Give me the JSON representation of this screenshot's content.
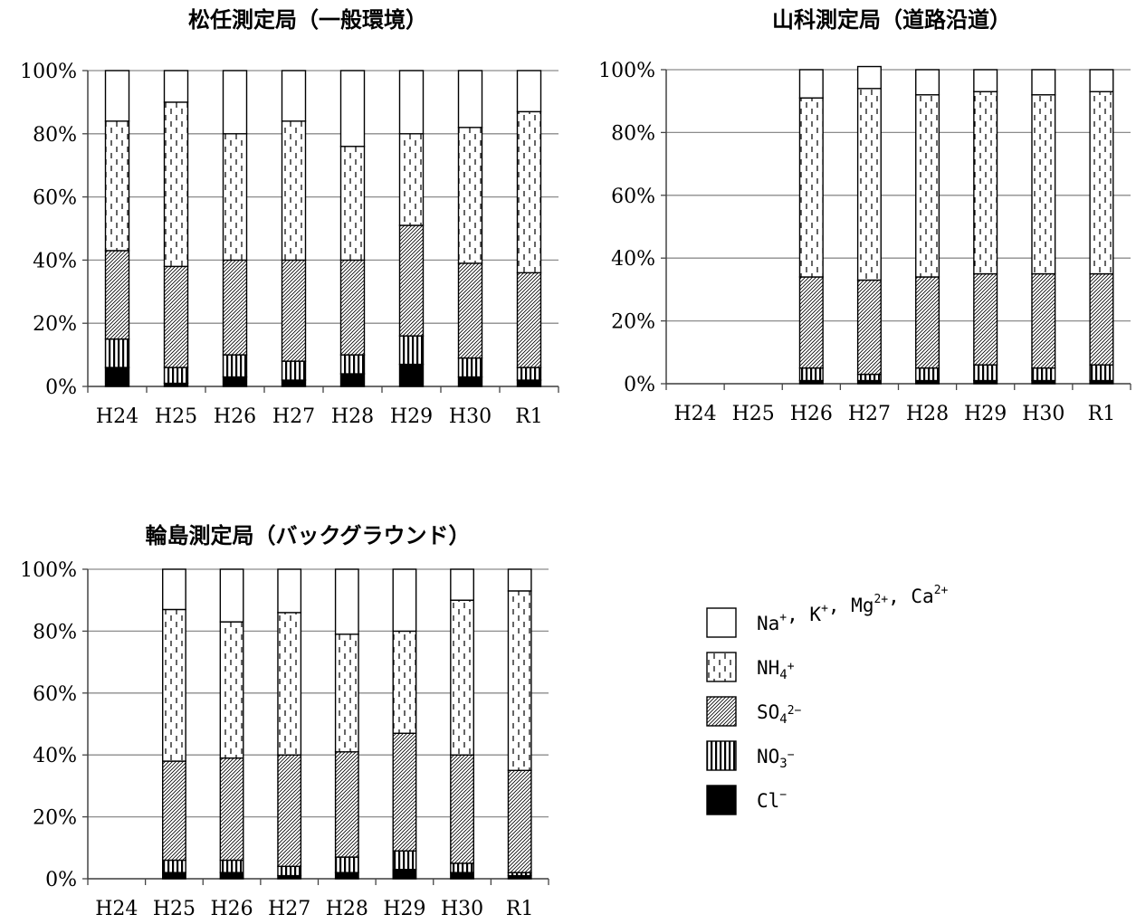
{
  "chart_data": [
    {
      "type": "bar",
      "stacked": true,
      "title": "松任測定局（一般環境）",
      "categories": [
        "H24",
        "H25",
        "H26",
        "H27",
        "H28",
        "H29",
        "H30",
        "R1"
      ],
      "y_ticks": [
        "0%",
        "20%",
        "40%",
        "60%",
        "80%",
        "100%"
      ],
      "ylim": [
        0,
        100
      ],
      "series": [
        {
          "name": "Cl⁻",
          "values": [
            6,
            1,
            3,
            2,
            4,
            7,
            3,
            2
          ]
        },
        {
          "name": "NO₃⁻",
          "values": [
            9,
            5,
            7,
            6,
            6,
            9,
            6,
            4
          ]
        },
        {
          "name": "SO₄²⁻",
          "values": [
            28,
            32,
            30,
            32,
            30,
            35,
            30,
            30
          ]
        },
        {
          "name": "NH₄⁺",
          "values": [
            41,
            52,
            40,
            44,
            36,
            29,
            43,
            51
          ]
        },
        {
          "name": "Na⁺, K⁺, Mg²⁺, Ca²⁺",
          "values": [
            16,
            10,
            20,
            16,
            24,
            20,
            18,
            13
          ]
        }
      ]
    },
    {
      "type": "bar",
      "stacked": true,
      "title": "山科測定局（道路沿道）",
      "categories": [
        "H24",
        "H25",
        "H26",
        "H27",
        "H28",
        "H29",
        "H30",
        "R1"
      ],
      "y_ticks": [
        "0%",
        "20%",
        "40%",
        "60%",
        "80%",
        "100%"
      ],
      "ylim": [
        0,
        100
      ],
      "series": [
        {
          "name": "Cl⁻",
          "values": [
            null,
            null,
            1,
            1,
            1,
            1,
            1,
            1
          ]
        },
        {
          "name": "NO₃⁻",
          "values": [
            null,
            null,
            4,
            2,
            4,
            5,
            4,
            5
          ]
        },
        {
          "name": "SO₄²⁻",
          "values": [
            null,
            null,
            29,
            30,
            29,
            29,
            30,
            29
          ]
        },
        {
          "name": "NH₄⁺",
          "values": [
            null,
            null,
            57,
            61,
            58,
            58,
            57,
            58
          ]
        },
        {
          "name": "Na⁺, K⁺, Mg²⁺, Ca²⁺",
          "values": [
            null,
            null,
            9,
            7,
            8,
            7,
            8,
            7
          ]
        }
      ]
    },
    {
      "type": "bar",
      "stacked": true,
      "title": "輪島測定局（バックグラウンド）",
      "categories": [
        "H24",
        "H25",
        "H26",
        "H27",
        "H28",
        "H29",
        "H30",
        "R1"
      ],
      "y_ticks": [
        "0%",
        "20%",
        "40%",
        "60%",
        "80%",
        "100%"
      ],
      "ylim": [
        0,
        100
      ],
      "series": [
        {
          "name": "Cl⁻",
          "values": [
            null,
            2,
            2,
            1,
            2,
            3,
            2,
            1
          ]
        },
        {
          "name": "NO₃⁻",
          "values": [
            null,
            4,
            4,
            3,
            5,
            6,
            3,
            1
          ]
        },
        {
          "name": "SO₄²⁻",
          "values": [
            null,
            32,
            33,
            36,
            34,
            38,
            35,
            33
          ]
        },
        {
          "name": "NH₄⁺",
          "values": [
            null,
            49,
            44,
            46,
            38,
            33,
            50,
            58
          ]
        },
        {
          "name": "Na⁺, K⁺, Mg²⁺, Ca²⁺",
          "values": [
            null,
            13,
            17,
            14,
            21,
            20,
            10,
            7
          ]
        }
      ]
    }
  ],
  "legend": {
    "placement": "right",
    "items": [
      {
        "key": "white",
        "label": "Na",
        "sup": "+",
        "parts": [
          {
            "t": "Na",
            "s": "+"
          },
          {
            "t": ", K",
            "s": "+"
          },
          {
            "t": ", Mg",
            "s": "2+"
          },
          {
            "t": ", Ca",
            "s": "2+"
          }
        ]
      },
      {
        "key": "nh4",
        "label": "NH4",
        "parts": [
          {
            "t": "NH",
            "sub": "4",
            "s": "+"
          }
        ]
      },
      {
        "key": "so4",
        "label": "SO4",
        "parts": [
          {
            "t": "SO",
            "sub": "4",
            "s": "2−"
          }
        ]
      },
      {
        "key": "no3",
        "label": "NO3",
        "parts": [
          {
            "t": "NO",
            "sub": "3",
            "s": "−"
          }
        ]
      },
      {
        "key": "cl",
        "label": "Cl",
        "parts": [
          {
            "t": "Cl",
            "s": "−"
          }
        ]
      }
    ]
  }
}
